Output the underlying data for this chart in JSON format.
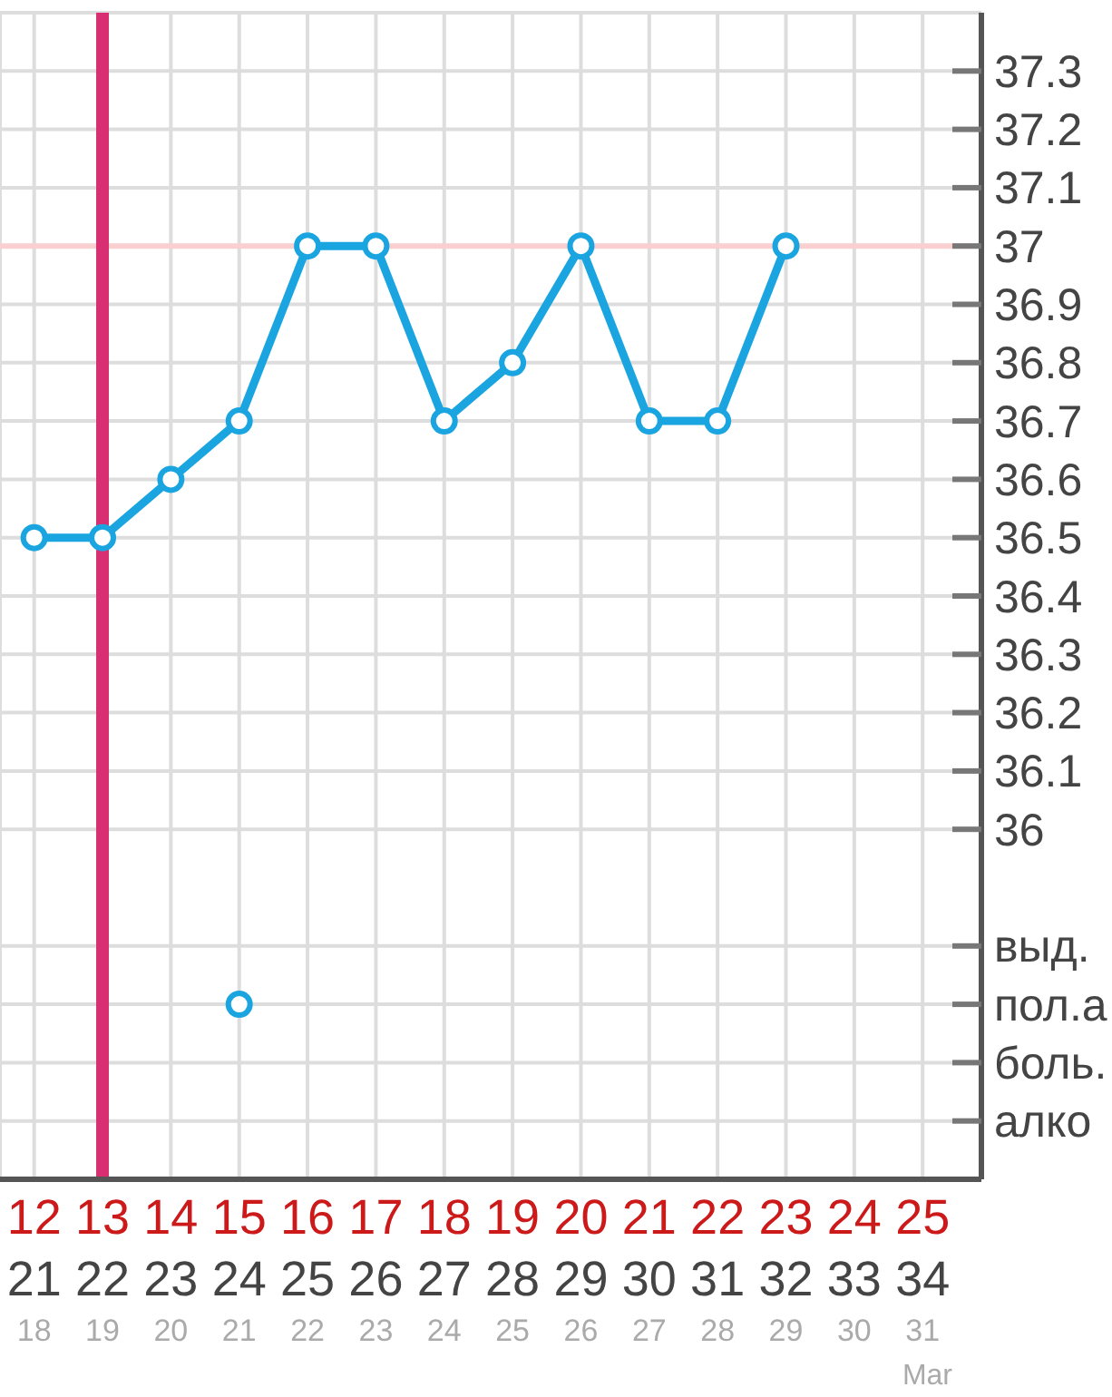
{
  "chart_data": {
    "type": "line",
    "categories": [
      "12\n21\n18",
      "13\n22\n19",
      "14\n23\n20",
      "15\n24\n21",
      "16\n25\n22",
      "17\n26\n23",
      "18\n27\n24",
      "19\n28\n25",
      "20\n29\n26",
      "21\n30\n27",
      "22\n31\n28",
      "23\n32\n29",
      "24\n33\n30",
      "25\n34\n31"
    ],
    "ylim": [
      35.4,
      37.4
    ],
    "yticks": [
      {
        "value": 35.5,
        "label": "алко"
      },
      {
        "value": 35.6,
        "label": "боль."
      },
      {
        "value": 35.7,
        "label": "пол.а"
      },
      {
        "value": 35.8,
        "label": "выд."
      },
      36,
      36.1,
      36.2,
      36.3,
      36.4,
      36.5,
      36.6,
      36.7,
      36.8,
      36.9,
      37,
      37.1,
      37.2,
      37.3
    ],
    "series": [
      {
        "values": [
          36.5,
          36.5,
          36.6,
          36.7,
          37,
          37,
          36.7,
          36.8,
          37,
          36.7,
          36.7,
          37,
          null,
          null
        ],
        "color": "#1ba5e0"
      },
      {
        "type": "scatter",
        "values": [
          null,
          null,
          null,
          35.7,
          null,
          null,
          null,
          null,
          null,
          null,
          null,
          null,
          null,
          null
        ],
        "color": "#1ba5e0"
      }
    ],
    "marker": "circle",
    "line_style": "solid",
    "grid": true,
    "ref_lines": [
      {
        "axis": "y",
        "value": 37,
        "color": "#f9cfcf"
      },
      {
        "axis": "x",
        "value": "13\n22\n19",
        "color": "#d82f73"
      }
    ],
    "annotations": [
      "Mar"
    ]
  }
}
